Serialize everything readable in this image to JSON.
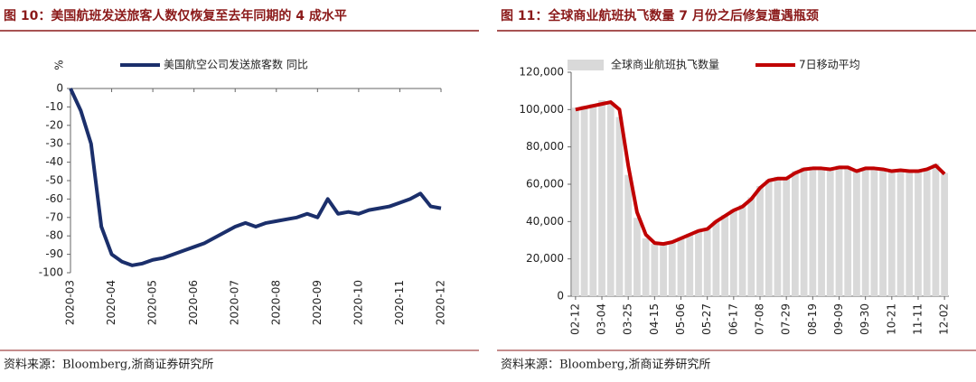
{
  "chart_data": [
    {
      "type": "line",
      "title": "图 10：美国航班发送旅客人数仅恢复至去年同期的 4 成水平",
      "y_label": "%",
      "source": "资料来源：Bloomberg,浙商证券研究所",
      "categories": [
        "2020-03",
        null,
        null,
        null,
        "2020-04",
        null,
        null,
        null,
        "2020-05",
        null,
        null,
        null,
        "2020-06",
        null,
        null,
        null,
        "2020-07",
        null,
        null,
        null,
        "2020-08",
        null,
        null,
        null,
        "2020-09",
        null,
        null,
        null,
        "2020-10",
        null,
        null,
        null,
        "2020-11",
        null,
        null,
        null,
        "2020-12"
      ],
      "series": [
        {
          "name": "美国航空公司发送旅客数 同比",
          "color": "#1b2f6b",
          "values": [
            0,
            -12,
            -30,
            -75,
            -90,
            -94,
            -96,
            -95,
            -93,
            -92,
            -90,
            -88,
            -86,
            -84,
            -81,
            -78,
            -75,
            -73,
            -75,
            -73,
            -72,
            -71,
            -70,
            -68,
            -70,
            -60,
            -68,
            -67,
            -68,
            -66,
            -65,
            -64,
            -62,
            -60,
            -57,
            -64,
            -65
          ]
        }
      ],
      "ylim": [
        -100,
        0
      ],
      "yticks": [
        0,
        -10,
        -20,
        -30,
        -40,
        -50,
        -60,
        -70,
        -80,
        -90,
        -100
      ],
      "grid": false
    },
    {
      "type": "combo",
      "title": "图 11：全球商业航班执飞数量 7 月份之后修复遭遇瓶颈",
      "source": "资料来源：Bloomberg,浙商证券研究所",
      "categories": [
        "02-12",
        null,
        null,
        "03-04",
        null,
        null,
        "03-25",
        null,
        null,
        "04-15",
        null,
        null,
        "05-06",
        null,
        null,
        "05-27",
        null,
        null,
        "06-17",
        null,
        null,
        "07-08",
        null,
        null,
        "07-29",
        null,
        null,
        "08-19",
        null,
        null,
        "09-09",
        null,
        null,
        "09-30",
        null,
        null,
        "10-21",
        null,
        null,
        "11-11",
        null,
        null,
        "12-02"
      ],
      "series": [
        {
          "name": "全球商业航班执飞数量",
          "type": "bar",
          "color": "#d9d9d9",
          "values": [
            101000,
            102000,
            103000,
            105000,
            104000,
            96000,
            65000,
            42000,
            31000,
            28000,
            27500,
            29000,
            31500,
            33500,
            35000,
            36500,
            40500,
            43500,
            46500,
            49000,
            53000,
            59000,
            62500,
            64000,
            63000,
            67000,
            69000,
            69500,
            69000,
            68500,
            70000,
            69500,
            67500,
            69000,
            69000,
            68500,
            67500,
            68000,
            67500,
            67500,
            68500,
            71000,
            66000
          ]
        },
        {
          "name": "7日移动平均",
          "type": "line",
          "color": "#c00000",
          "values": [
            100000,
            101000,
            102000,
            103000,
            104000,
            100000,
            70000,
            45000,
            33000,
            28500,
            28000,
            29000,
            31000,
            33000,
            35000,
            36000,
            40000,
            43000,
            46000,
            48000,
            52000,
            58000,
            62000,
            63000,
            63000,
            66000,
            68000,
            68500,
            68500,
            68000,
            69000,
            69000,
            67000,
            68500,
            68500,
            68000,
            67000,
            67500,
            67000,
            67000,
            68000,
            70000,
            65500
          ]
        }
      ],
      "ylim": [
        0,
        120000
      ],
      "yticks": [
        0,
        {
          "value": 20000,
          "label": "20,000"
        },
        {
          "value": 40000,
          "label": "40,000"
        },
        {
          "value": 60000,
          "label": "60,000"
        },
        {
          "value": 80000,
          "label": "80,000"
        },
        {
          "value": 100000,
          "label": "100,000"
        },
        {
          "value": 120000,
          "label": "120,000"
        }
      ],
      "grid": false
    }
  ]
}
